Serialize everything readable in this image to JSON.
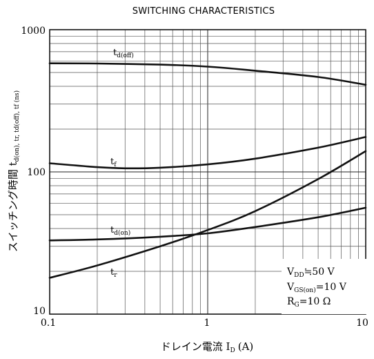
{
  "chart_data": {
    "type": "line",
    "title": "SWITCHING CHARACTERISTICS",
    "xlabel": "ドレイン電流 I",
    "xlabel_sub": "D",
    "xlabel_unit": "(A)",
    "ylabel": "スイッチング時間 t",
    "ylabel_rest": "d(on), tr, td(off), tf (ns)",
    "x_scale": "log",
    "y_scale": "log",
    "xlim": [
      0.1,
      10
    ],
    "ylim": [
      10,
      1000
    ],
    "grid": true,
    "x_ticks": [
      "0.1",
      "1",
      "10"
    ],
    "y_ticks": [
      "10",
      "100",
      "1000"
    ],
    "series": [
      {
        "name": "t",
        "sub": "d(off)",
        "x": [
          0.1,
          0.2,
          0.5,
          1,
          2,
          5,
          10
        ],
        "y": [
          580,
          578,
          568,
          550,
          515,
          465,
          410
        ]
      },
      {
        "name": "t",
        "sub": "f",
        "x": [
          0.1,
          0.2,
          0.3,
          0.5,
          1,
          2,
          5,
          10
        ],
        "y": [
          115,
          108,
          106,
          107,
          113,
          124,
          148,
          176
        ]
      },
      {
        "name": "t",
        "sub": "d(on)",
        "x": [
          0.1,
          0.2,
          0.5,
          1,
          2,
          5,
          10
        ],
        "y": [
          33,
          33.5,
          35,
          37,
          41,
          48,
          56
        ]
      },
      {
        "name": "t",
        "sub": "r",
        "x": [
          0.1,
          0.2,
          0.5,
          1,
          2,
          5,
          10
        ],
        "y": [
          18,
          22,
          30,
          39,
          53,
          89,
          140
        ]
      }
    ],
    "conditions": [
      {
        "main": "V",
        "sub": "DD",
        "rest": "≒50 V"
      },
      {
        "main": "V",
        "sub": "GS(on)",
        "rest": "=10 V"
      },
      {
        "main": "R",
        "sub": "G",
        "rest": "=10 Ω"
      }
    ]
  }
}
